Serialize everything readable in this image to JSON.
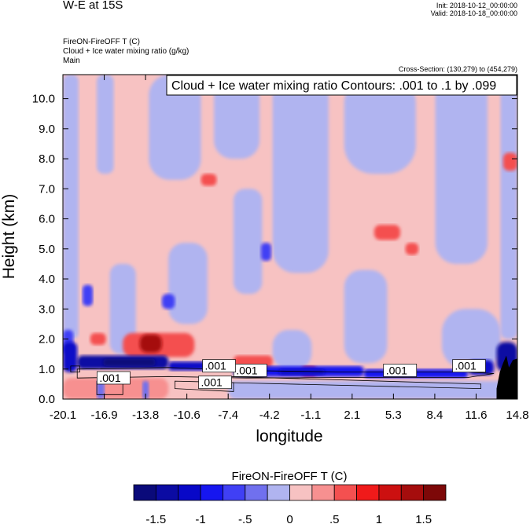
{
  "header": {
    "title": "W-E at 15S",
    "init": "Init: 2018-10-12_00:00:00",
    "valid": "Valid: 2018-10-18_00:00:00",
    "field1": "FireON-FireOFF T   (C)",
    "field2": "Cloud + Ice water mixing ratio   (g/kg)",
    "field3": "Main",
    "cross_section": "Cross-Section: (130,279) to (454,279)"
  },
  "contour_info": "Cloud + Ice water mixing ratio Contours: .001 to .1 by .099",
  "colors": {
    "levels": [
      "#0a0a7a",
      "#0b0ba3",
      "#0808c8",
      "#1616f0",
      "#4040f5",
      "#7070ee",
      "#b0b4f0",
      "#f7c2c2",
      "#f79090",
      "#f45050",
      "#f01a1a",
      "#cc1010",
      "#a50d0d",
      "#7d0808"
    ],
    "background": "#ffffff",
    "terrain": "#000000"
  },
  "chart_data": {
    "type": "heatmap",
    "title": "W-E at 15S",
    "xlabel": "longitude",
    "ylabel": "Height (km)",
    "x_ticks": [
      "-20.1",
      "-16.9",
      "-13.8",
      "-10.6",
      "-7.4",
      "-4.2",
      "-1.1",
      "2.1",
      "5.3",
      "8.4",
      "11.6",
      "14.8"
    ],
    "y_ticks": [
      "0.0",
      "1.0",
      "2.0",
      "3.0",
      "4.0",
      "5.0",
      "6.0",
      "7.0",
      "8.0",
      "9.0",
      "10.0"
    ],
    "xlim": [
      -20.1,
      14.8
    ],
    "ylim": [
      0.0,
      10.8
    ],
    "colorbar": {
      "title": "FireON-FireOFF T  (C)",
      "labels": [
        "-1.5",
        "-1",
        "-.5",
        "0",
        ".5",
        "1",
        "1.5"
      ],
      "boundaries": [
        -1.75,
        -1.5,
        -1.25,
        -1,
        -0.75,
        -0.5,
        -0.25,
        0,
        0.25,
        0.5,
        0.75,
        1,
        1.25,
        1.5,
        1.75
      ]
    },
    "contour_labels": [
      ".001",
      ".001",
      ".001",
      ".001",
      ".001",
      ".001"
    ],
    "regions": [
      {
        "x": [
          -20.1,
          14.8
        ],
        "y": [
          0.0,
          10.8
        ],
        "value": 0.1
      },
      {
        "x": [
          -20.1,
          -18.9
        ],
        "y": [
          2.0,
          10.8
        ],
        "value": -0.1
      },
      {
        "x": [
          -17.5,
          -16.2
        ],
        "y": [
          7.5,
          10.8
        ],
        "value": -0.1
      },
      {
        "x": [
          -16.5,
          -14.5
        ],
        "y": [
          1.5,
          4.5
        ],
        "value": -0.1
      },
      {
        "x": [
          -13.5,
          -9.5
        ],
        "y": [
          7.3,
          10.8
        ],
        "value": -0.1
      },
      {
        "x": [
          -12.0,
          -9.0
        ],
        "y": [
          2.5,
          5.2
        ],
        "value": -0.1
      },
      {
        "x": [
          -8.5,
          -5.0
        ],
        "y": [
          8.0,
          10.8
        ],
        "value": -0.1
      },
      {
        "x": [
          -7.0,
          -4.8
        ],
        "y": [
          3.5,
          7.0
        ],
        "value": -0.1
      },
      {
        "x": [
          -4.0,
          0.3
        ],
        "y": [
          4.2,
          10.8
        ],
        "value": -0.1
      },
      {
        "x": [
          -4.0,
          -1.0
        ],
        "y": [
          1.0,
          2.3
        ],
        "value": -0.1
      },
      {
        "x": [
          1.5,
          7.0
        ],
        "y": [
          7.5,
          10.8
        ],
        "value": -0.1
      },
      {
        "x": [
          1.5,
          4.8
        ],
        "y": [
          1.2,
          4.3
        ],
        "value": -0.1
      },
      {
        "x": [
          8.5,
          12.5
        ],
        "y": [
          4.5,
          10.8
        ],
        "value": -0.1
      },
      {
        "x": [
          9.0,
          13.5
        ],
        "y": [
          1.0,
          3.0
        ],
        "value": -0.1
      },
      {
        "x": [
          13.5,
          14.8
        ],
        "y": [
          2.0,
          10.8
        ],
        "value": -0.1
      },
      {
        "x": [
          -20.1,
          -19.3
        ],
        "y": [
          1.5,
          2.3
        ],
        "value": -0.6
      },
      {
        "x": [
          -18.6,
          -17.8
        ],
        "y": [
          3.1,
          3.8
        ],
        "value": -0.6
      },
      {
        "x": [
          -12.5,
          -11.5
        ],
        "y": [
          3.0,
          3.5
        ],
        "value": -0.6
      },
      {
        "x": [
          -4.9,
          -4.1
        ],
        "y": [
          4.6,
          5.2
        ],
        "value": -0.6
      },
      {
        "x": [
          -15.5,
          -10.0
        ],
        "y": [
          1.4,
          2.2
        ],
        "value": 0.55
      },
      {
        "x": [
          -14.2,
          -12.5
        ],
        "y": [
          1.55,
          2.15
        ],
        "value": 1.3
      },
      {
        "x": [
          -18.0,
          -16.8
        ],
        "y": [
          1.8,
          2.2
        ],
        "value": 0.55
      },
      {
        "x": [
          3.8,
          5.8
        ],
        "y": [
          5.3,
          5.8
        ],
        "value": 0.55
      },
      {
        "x": [
          6.2,
          7.2
        ],
        "y": [
          4.8,
          5.2
        ],
        "value": 0.55
      },
      {
        "x": [
          -9.5,
          -8.3
        ],
        "y": [
          7.1,
          7.5
        ],
        "value": 0.55
      },
      {
        "x": [
          13.7,
          14.8
        ],
        "y": [
          7.6,
          8.2
        ],
        "value": 0.55
      },
      {
        "x": [
          -7.0,
          -4.0
        ],
        "y": [
          1.05,
          1.45
        ],
        "value": 0.55
      },
      {
        "x": [
          -1.8,
          -0.6
        ],
        "y": [
          0.75,
          1.1
        ],
        "value": 0.8
      },
      {
        "x": [
          10.0,
          11.5
        ],
        "y": [
          1.0,
          1.3
        ],
        "value": 0.55
      },
      {
        "x": [
          -20.1,
          -19.0
        ],
        "y": [
          0.9,
          1.9
        ],
        "value": -1.1
      },
      {
        "x": [
          -19.0,
          -12.0
        ],
        "y": [
          1.0,
          1.45
        ],
        "value": -1.35
      },
      {
        "x": [
          -17.0,
          -13.0
        ],
        "y": [
          1.1,
          1.35
        ],
        "value": -1.65
      },
      {
        "x": [
          -12.0,
          -7.0
        ],
        "y": [
          0.95,
          1.25
        ],
        "value": -1.1
      },
      {
        "x": [
          -7.0,
          3.0
        ],
        "y": [
          0.75,
          1.1
        ],
        "value": -0.85
      },
      {
        "x": [
          -3.5,
          0.0
        ],
        "y": [
          0.8,
          1.0
        ],
        "value": -1.1
      },
      {
        "x": [
          3.0,
          11.0
        ],
        "y": [
          0.7,
          1.0
        ],
        "value": -0.85
      },
      {
        "x": [
          11.0,
          13.0
        ],
        "y": [
          0.8,
          1.3
        ],
        "value": -1.1
      },
      {
        "x": [
          13.2,
          14.8
        ],
        "y": [
          0.9,
          1.9
        ],
        "value": -1.35
      },
      {
        "x": [
          -20.1,
          -12.0
        ],
        "y": [
          0.0,
          0.7
        ],
        "value": 0.3
      },
      {
        "x": [
          -17.5,
          -16.9
        ],
        "y": [
          0.0,
          0.65
        ],
        "value": -0.3
      },
      {
        "x": [
          -14.0,
          -13.5
        ],
        "y": [
          0.0,
          0.6
        ],
        "value": -0.3
      },
      {
        "x": [
          -7.4,
          14.8
        ],
        "y": [
          0.0,
          0.6
        ],
        "value": -0.15
      }
    ]
  }
}
